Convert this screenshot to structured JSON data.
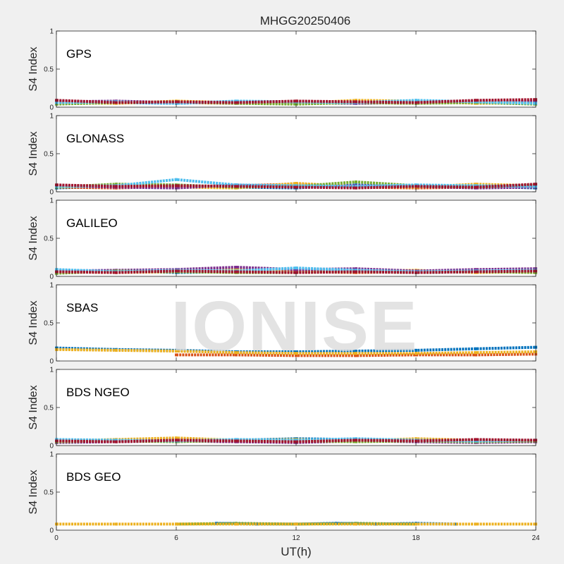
{
  "chart_data": {
    "type": "scatter",
    "title": "MHGG20250406",
    "xlabel": "UT(h)",
    "ylabel": "S4 Index",
    "xlim": [
      0,
      24
    ],
    "ylim": [
      0,
      1
    ],
    "xticks": [
      "0",
      "6",
      "12",
      "18",
      "24"
    ],
    "yticks": [
      "0",
      "0.5",
      "1"
    ],
    "watermark": "IONISE",
    "grid": false,
    "series_colors": [
      "#0072BD",
      "#D95319",
      "#EDB120",
      "#7E2F8E",
      "#77AC30",
      "#4DBEEE",
      "#A2142F"
    ],
    "panels": [
      {
        "system": "GPS",
        "series": [
          {
            "color": "#0072BD",
            "x": [
              0,
              3,
              6,
              9,
              12,
              15,
              18,
              21,
              24
            ],
            "values": [
              0.08,
              0.06,
              0.05,
              0.07,
              0.06,
              0.05,
              0.07,
              0.06,
              0.08
            ]
          },
          {
            "color": "#D95319",
            "x": [
              0,
              3,
              6,
              9,
              12,
              15,
              18,
              21,
              24
            ],
            "values": [
              0.05,
              0.07,
              0.06,
              0.05,
              0.08,
              0.06,
              0.05,
              0.07,
              0.06
            ]
          },
          {
            "color": "#EDB120",
            "x": [
              0,
              3,
              6,
              9,
              12,
              15,
              18,
              21,
              24
            ],
            "values": [
              0.06,
              0.05,
              0.08,
              0.06,
              0.05,
              0.09,
              0.08,
              0.05,
              0.06
            ]
          },
          {
            "color": "#7E2F8E",
            "x": [
              0,
              3,
              6,
              9,
              12,
              15,
              18,
              21,
              24
            ],
            "values": [
              0.07,
              0.08,
              0.06,
              0.07,
              0.06,
              0.05,
              0.06,
              0.08,
              0.07
            ]
          },
          {
            "color": "#77AC30",
            "x": [
              0,
              3,
              6,
              9,
              12,
              15,
              18,
              21,
              24
            ],
            "values": [
              0.04,
              0.06,
              0.07,
              0.05,
              0.04,
              0.06,
              0.05,
              0.06,
              0.04
            ]
          },
          {
            "color": "#4DBEEE",
            "x": [
              0,
              3,
              6,
              9,
              12,
              15,
              18,
              21,
              24
            ],
            "values": [
              0.06,
              0.07,
              0.05,
              0.08,
              0.07,
              0.06,
              0.09,
              0.07,
              0.05
            ]
          },
          {
            "color": "#A2142F",
            "x": [
              0,
              3,
              6,
              9,
              12,
              15,
              18,
              21,
              24
            ],
            "values": [
              0.09,
              0.06,
              0.07,
              0.06,
              0.08,
              0.07,
              0.06,
              0.09,
              0.1
            ]
          }
        ]
      },
      {
        "system": "GLONASS",
        "series": [
          {
            "color": "#0072BD",
            "x": [
              0,
              3,
              6,
              9,
              12,
              15,
              18,
              21,
              24
            ],
            "values": [
              0.05,
              0.07,
              0.08,
              0.06,
              0.05,
              0.09,
              0.06,
              0.07,
              0.05
            ]
          },
          {
            "color": "#D95319",
            "x": [
              0,
              3,
              6,
              9,
              12,
              15,
              18,
              21,
              24
            ],
            "values": [
              0.06,
              0.05,
              0.07,
              0.08,
              0.1,
              0.06,
              0.05,
              0.06,
              0.07
            ]
          },
          {
            "color": "#EDB120",
            "x": [
              0,
              3,
              6,
              9,
              12,
              15,
              18,
              21,
              24
            ],
            "values": [
              0.07,
              0.09,
              0.06,
              0.05,
              0.11,
              0.07,
              0.06,
              0.1,
              0.08
            ]
          },
          {
            "color": "#7E2F8E",
            "x": [
              0,
              3,
              6,
              9,
              12,
              15,
              18,
              21,
              24
            ],
            "values": [
              0.08,
              0.06,
              0.05,
              0.09,
              0.06,
              0.08,
              0.07,
              0.05,
              0.06
            ]
          },
          {
            "color": "#77AC30",
            "x": [
              0,
              3,
              6,
              9,
              12,
              15,
              18,
              21,
              24
            ],
            "values": [
              0.06,
              0.1,
              0.09,
              0.06,
              0.07,
              0.13,
              0.08,
              0.06,
              0.09
            ]
          },
          {
            "color": "#4DBEEE",
            "x": [
              0,
              3,
              6,
              9,
              12,
              15,
              18,
              21,
              24
            ],
            "values": [
              0.07,
              0.08,
              0.16,
              0.09,
              0.08,
              0.07,
              0.09,
              0.08,
              0.07
            ]
          },
          {
            "color": "#A2142F",
            "x": [
              0,
              3,
              6,
              9,
              12,
              15,
              18,
              21,
              24
            ],
            "values": [
              0.09,
              0.07,
              0.08,
              0.07,
              0.06,
              0.05,
              0.07,
              0.06,
              0.1
            ]
          }
        ]
      },
      {
        "system": "GALILEO",
        "series": [
          {
            "color": "#0072BD",
            "x": [
              0,
              3,
              6,
              9,
              12,
              15,
              18,
              21,
              24
            ],
            "values": [
              0.08,
              0.07,
              0.05,
              0.06,
              0.07,
              0.09,
              0.05,
              0.06,
              0.07
            ]
          },
          {
            "color": "#D95319",
            "x": [
              0,
              3,
              6,
              9,
              12,
              15,
              18,
              21,
              24
            ],
            "values": [
              0.05,
              0.06,
              0.07,
              0.05,
              0.06,
              0.05,
              0.06,
              0.07,
              0.05
            ]
          },
          {
            "color": "#EDB120",
            "x": [
              0,
              3,
              6,
              9,
              12,
              15,
              18,
              21,
              24
            ],
            "values": [
              0.06,
              0.05,
              0.06,
              0.09,
              0.06,
              0.07,
              0.08,
              0.05,
              0.06
            ]
          },
          {
            "color": "#7E2F8E",
            "x": [
              0,
              3,
              6,
              9,
              12,
              15,
              18,
              21,
              24
            ],
            "values": [
              0.07,
              0.08,
              0.09,
              0.12,
              0.09,
              0.1,
              0.07,
              0.09,
              0.1
            ]
          },
          {
            "color": "#77AC30",
            "x": [
              0,
              3,
              6,
              9,
              12,
              15,
              18,
              21,
              24
            ],
            "values": [
              0.04,
              0.07,
              0.06,
              0.05,
              0.05,
              0.06,
              0.05,
              0.06,
              0.05
            ]
          },
          {
            "color": "#4DBEEE",
            "x": [
              0,
              3,
              6,
              9,
              12,
              15,
              18,
              21,
              24
            ],
            "values": [
              0.09,
              0.06,
              0.08,
              0.07,
              0.11,
              0.08,
              0.06,
              0.07,
              0.08
            ]
          },
          {
            "color": "#A2142F",
            "x": [
              0,
              3,
              6,
              9,
              12,
              15,
              18,
              21,
              24
            ],
            "values": [
              0.06,
              0.05,
              0.07,
              0.06,
              0.05,
              0.06,
              0.05,
              0.06,
              0.07
            ]
          }
        ]
      },
      {
        "system": "SBAS",
        "series": [
          {
            "color": "#0072BD",
            "x": [
              0,
              3,
              6,
              9,
              12,
              15,
              18,
              21,
              24
            ],
            "values": [
              0.17,
              0.15,
              0.14,
              0.12,
              0.12,
              0.13,
              0.14,
              0.16,
              0.18
            ]
          },
          {
            "color": "#D95319",
            "x": [
              6,
              9,
              12,
              15,
              18,
              21,
              24
            ],
            "values": [
              0.08,
              0.08,
              0.07,
              0.07,
              0.08,
              0.08,
              0.09
            ]
          },
          {
            "color": "#EDB120",
            "x": [
              0,
              3,
              6,
              9,
              12,
              15,
              18,
              21,
              24
            ],
            "values": [
              0.15,
              0.14,
              0.13,
              0.11,
              0.1,
              0.1,
              0.1,
              0.11,
              0.12
            ]
          }
        ]
      },
      {
        "system": "BDS NGEO",
        "series": [
          {
            "color": "#0072BD",
            "x": [
              0,
              3,
              6,
              9,
              12,
              15,
              18,
              21,
              24
            ],
            "values": [
              0.07,
              0.06,
              0.08,
              0.07,
              0.09,
              0.08,
              0.06,
              0.07,
              0.06
            ]
          },
          {
            "color": "#D95319",
            "x": [
              0,
              3,
              6,
              9,
              12,
              15,
              18,
              21,
              24
            ],
            "values": [
              0.05,
              0.07,
              0.06,
              0.05,
              0.06,
              0.07,
              0.08,
              0.06,
              0.05
            ]
          },
          {
            "color": "#EDB120",
            "x": [
              0,
              3,
              6,
              9,
              12,
              15,
              18,
              21,
              24
            ],
            "values": [
              0.06,
              0.08,
              0.1,
              0.07,
              0.08,
              0.06,
              0.09,
              0.07,
              0.06
            ]
          },
          {
            "color": "#7E2F8E",
            "x": [
              0,
              3,
              6,
              9,
              12,
              15,
              18,
              21,
              24
            ],
            "values": [
              0.04,
              0.05,
              0.06,
              0.05,
              0.04,
              0.06,
              0.05,
              0.04,
              0.05
            ]
          },
          {
            "color": "#77AC30",
            "x": [
              0,
              3,
              6,
              9,
              12,
              15,
              18,
              21,
              24
            ],
            "values": [
              0.05,
              0.06,
              0.05,
              0.07,
              0.06,
              0.05,
              0.06,
              0.05,
              0.06
            ]
          },
          {
            "color": "#4DBEEE",
            "x": [
              0,
              3,
              6,
              9,
              12,
              15,
              18,
              21,
              24
            ],
            "values": [
              0.08,
              0.07,
              0.06,
              0.08,
              0.07,
              0.09,
              0.07,
              0.06,
              0.07
            ]
          },
          {
            "color": "#A2142F",
            "x": [
              0,
              3,
              6,
              9,
              12,
              15,
              18,
              21,
              24
            ],
            "values": [
              0.06,
              0.05,
              0.07,
              0.06,
              0.05,
              0.07,
              0.06,
              0.08,
              0.07
            ]
          }
        ]
      },
      {
        "system": "BDS GEO",
        "series": [
          {
            "color": "#77AC30",
            "x": [
              6,
              9,
              12,
              15,
              18
            ],
            "values": [
              0.08,
              0.09,
              0.08,
              0.09,
              0.08
            ]
          },
          {
            "color": "#0072BD",
            "x": [
              8,
              10,
              12,
              14,
              16,
              18,
              20
            ],
            "values": [
              0.09,
              0.08,
              0.08,
              0.09,
              0.08,
              0.09,
              0.08
            ]
          },
          {
            "color": "#EDB120",
            "x": [
              0,
              3,
              6,
              9,
              12,
              15,
              18,
              21,
              24
            ],
            "values": [
              0.08,
              0.08,
              0.08,
              0.08,
              0.08,
              0.08,
              0.08,
              0.08,
              0.08
            ]
          }
        ]
      }
    ]
  }
}
